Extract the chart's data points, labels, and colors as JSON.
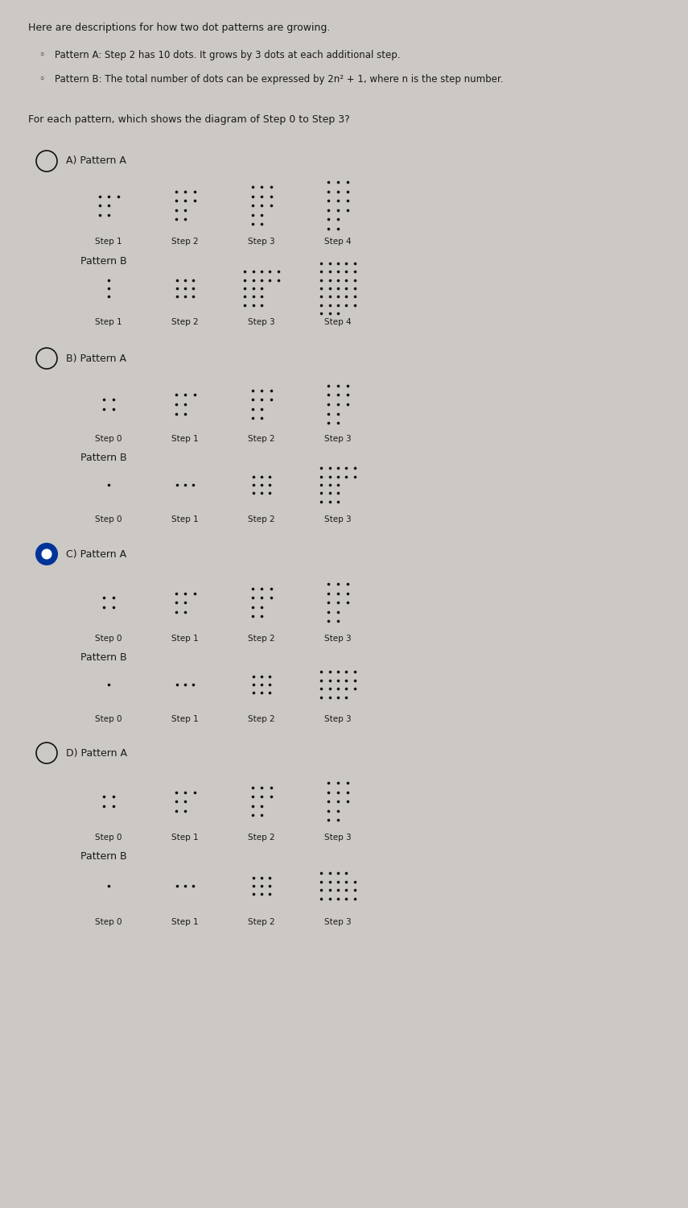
{
  "bg_color": "#ccc8c4",
  "text_color": "#1a1a1a",
  "title_text": "Here are descriptions for how two dot patterns are growing.",
  "bullet1": "Pattern A: Step 2 has 10 dots. It grows by 3 dots at each additional step.",
  "bullet2": "Pattern B: The total number of dots can be expressed by 2n² + 1, where n is the step number.",
  "question": "For each pattern, which shows the diagram of Step 0 to Step 3?",
  "dot_color": "#111111",
  "radio_unsel_color": "#111111",
  "radio_sel_color": "#003399",
  "figw": 8.55,
  "figh": 15.0,
  "dpi": 100
}
